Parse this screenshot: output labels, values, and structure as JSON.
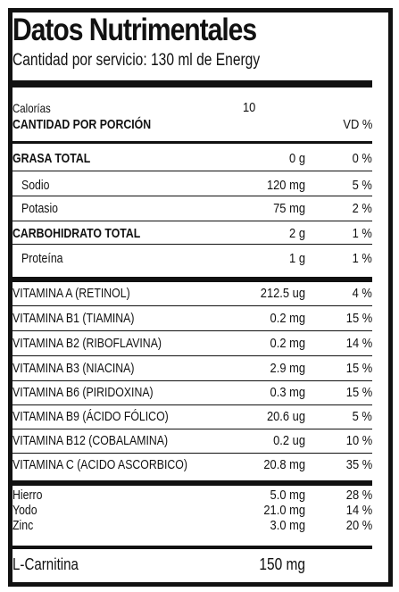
{
  "title": "Datos Nutrimentales",
  "serving": "Cantidad por servicio: 130 ml de Energy",
  "calories": {
    "label": "Calorías",
    "value": "10"
  },
  "header": {
    "portion": "CANTIDAD POR PORCIÓN",
    "vd": "VD %"
  },
  "group1": [
    {
      "name": "GRASA TOTAL",
      "amount": "0 g",
      "vd": "0 %"
    },
    {
      "name": "Sodio",
      "amount": "120 mg",
      "vd": "5 %"
    },
    {
      "name": "Potasio",
      "amount": "75 mg",
      "vd": "2 %"
    },
    {
      "name": "CARBOHIDRATO TOTAL",
      "amount": "2 g",
      "vd": "1 %"
    },
    {
      "name": "Proteína",
      "amount": "1 g",
      "vd": "1 %"
    }
  ],
  "vitamins": [
    {
      "name": "VITAMINA A (RETINOL)",
      "amount": "212.5 ug",
      "vd": "4 %"
    },
    {
      "name": "VITAMINA B1 (TIAMINA)",
      "amount": "0.2 mg",
      "vd": "15 %"
    },
    {
      "name": "VITAMINA B2 (RIBOFLAVINA)",
      "amount": "0.2 mg",
      "vd": "14 %"
    },
    {
      "name": "VITAMINA B3 (NIACINA)",
      "amount": "2.9 mg",
      "vd": "15 %"
    },
    {
      "name": "VITAMINA B6 (PIRIDOXINA)",
      "amount": "0.3 mg",
      "vd": "15 %"
    },
    {
      "name": "VITAMINA B9 (ÁCIDO FÓLICO)",
      "amount": "20.6 ug",
      "vd": "5 %"
    },
    {
      "name": "VITAMINA B12 (COBALAMINA)",
      "amount": "0.2 ug",
      "vd": "10 %"
    },
    {
      "name": "VITAMINA C (ACIDO ASCORBICO)",
      "amount": "20.8 mg",
      "vd": "35 %"
    }
  ],
  "minerals": [
    {
      "name": "Hierro",
      "amount": "5.0 mg",
      "vd": "28 %"
    },
    {
      "name": "Yodo",
      "amount": "21.0 mg",
      "vd": "14 %"
    },
    {
      "name": "Zinc",
      "amount": "3.0 mg",
      "vd": "20 %"
    }
  ],
  "carnitine": {
    "name": "L-Carnitina",
    "amount": "150 mg"
  }
}
